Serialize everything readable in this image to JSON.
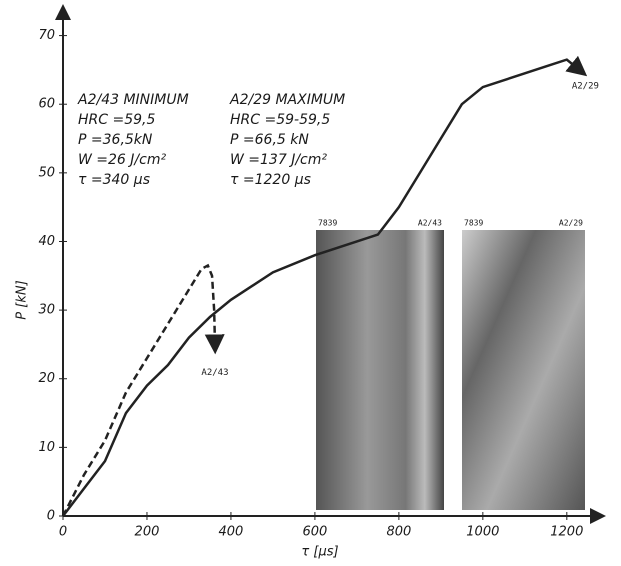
{
  "chart_data": {
    "type": "line",
    "x_label": "τ [μs]",
    "y_label": "P [kN]",
    "xlim": [
      0,
      1260
    ],
    "ylim": [
      0,
      73
    ],
    "xticks": [
      0,
      200,
      400,
      600,
      800,
      1000,
      1200
    ],
    "yticks": [
      0,
      10,
      20,
      30,
      40,
      50,
      60,
      70
    ],
    "series": [
      {
        "name": "A2/43",
        "color": "#222222",
        "dashed": true,
        "x": [
          0,
          50,
          100,
          150,
          200,
          250,
          300,
          330,
          345,
          355,
          360,
          362
        ],
        "values": [
          0,
          6,
          11,
          18,
          23,
          28,
          33,
          36,
          36.5,
          35,
          30,
          25
        ]
      },
      {
        "name": "A2/29",
        "color": "#222222",
        "dashed": false,
        "x": [
          0,
          50,
          100,
          150,
          200,
          250,
          300,
          350,
          400,
          450,
          500,
          600,
          700,
          750,
          800,
          850,
          900,
          950,
          1000,
          1100,
          1150,
          1200,
          1230
        ],
        "values": [
          0,
          4,
          8,
          15,
          19,
          22,
          26,
          29,
          31.5,
          33.5,
          35.5,
          38,
          40,
          41,
          45,
          50,
          55,
          60,
          62.5,
          64.5,
          65.5,
          66.5,
          65
        ]
      }
    ],
    "annotations": [
      [
        "A2/43 MINIMUM",
        "HRC =59,5",
        "P =36,5kN",
        "W =26 J/cm²",
        "τ =340 μs"
      ],
      [
        "A2/29 MAXIMUM",
        "HRC =59-59,5",
        "P =66,5 kN",
        "W =137 J/cm²",
        "τ =1220 μs"
      ]
    ],
    "photos": [
      {
        "labels": [
          "7839",
          "A2/43"
        ]
      },
      {
        "labels": [
          "7839",
          "A2/29"
        ]
      }
    ]
  }
}
